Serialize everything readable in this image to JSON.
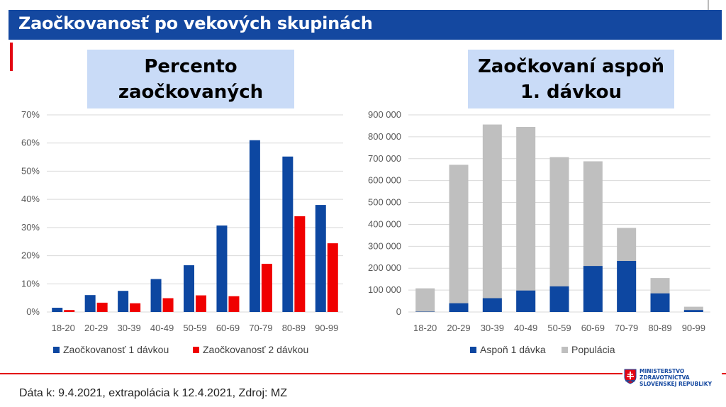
{
  "header": {
    "title": "Zaočkovanosť po vekových skupinách"
  },
  "left_panel": {
    "title_line1": "Percento",
    "title_line2": "zaočkovaných"
  },
  "right_panel": {
    "title_line1": "Zaočkovaní aspoň",
    "title_line2": "1. dávkou"
  },
  "footer": {
    "text": "Dáta k: 9.4.2021, extrapolácia k 12.4.2021, Zdroj: MZ"
  },
  "ministry": {
    "line1": "MINISTERSTVO",
    "line2": "ZDRAVOTNÍCTVA",
    "line3": "SLOVENSKEJ REPUBLIKY"
  },
  "chart_data": [
    {
      "type": "bar",
      "title": "Percento zaočkovaných",
      "categories": [
        "18-20",
        "20-29",
        "30-39",
        "40-49",
        "50-59",
        "60-69",
        "70-79",
        "80-89",
        "90-99"
      ],
      "series": [
        {
          "name": "Zaočkovanosť 1 dávkou",
          "color": "#0d47a1",
          "values": [
            1.5,
            6.0,
            7.5,
            11.7,
            16.6,
            30.7,
            61.0,
            55.2,
            38.0
          ]
        },
        {
          "name": "Zaočkovanosť 2 dávkou",
          "color": "#f00000",
          "values": [
            0.7,
            3.3,
            3.1,
            4.9,
            5.9,
            5.6,
            17.1,
            34.0,
            24.4
          ]
        }
      ],
      "ylim": [
        0,
        70
      ],
      "yticks": [
        "0%",
        "10%",
        "20%",
        "30%",
        "40%",
        "50%",
        "60%",
        "70%"
      ],
      "grid": true,
      "legend": "bottom"
    },
    {
      "type": "bar",
      "stacked": true,
      "title": "Zaočkovaní aspoň 1. dávkou",
      "categories": [
        "18-20",
        "20-29",
        "30-39",
        "40-49",
        "50-59",
        "60-69",
        "70-79",
        "80-89",
        "90-99"
      ],
      "series": [
        {
          "name": "Aspoň 1 dávka",
          "color": "#0d47a1",
          "values": [
            1500,
            40000,
            63000,
            98000,
            117000,
            210000,
            233000,
            85000,
            9000
          ]
        },
        {
          "name": "Populácia",
          "color": "#bfbfbf",
          "values": [
            108000,
            672000,
            856000,
            845000,
            707000,
            688000,
            384000,
            155000,
            24000
          ]
        }
      ],
      "ylim": [
        0,
        900000
      ],
      "yticks": [
        "0",
        "100 000",
        "200 000",
        "300 000",
        "400 000",
        "500 000",
        "600 000",
        "700 000",
        "800 000",
        "900 000"
      ],
      "grid": true,
      "legend": "bottom"
    }
  ]
}
